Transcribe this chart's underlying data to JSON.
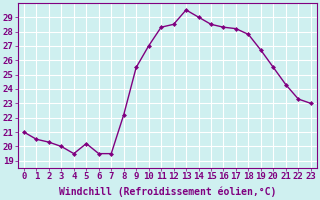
{
  "x": [
    0,
    1,
    2,
    3,
    4,
    5,
    6,
    7,
    8,
    9,
    10,
    11,
    12,
    13,
    14,
    15,
    16,
    17,
    18,
    19,
    20,
    21,
    22,
    23
  ],
  "y": [
    21.0,
    20.5,
    20.3,
    20.0,
    19.5,
    20.2,
    19.5,
    19.5,
    22.2,
    25.5,
    27.0,
    28.3,
    28.5,
    29.5,
    29.0,
    28.5,
    28.3,
    28.2,
    27.8,
    26.7,
    25.5,
    24.3,
    23.3,
    23.0
  ],
  "line_color": "#800080",
  "marker": "D",
  "marker_size": 2.0,
  "line_width": 1.0,
  "xlabel": "Windchill (Refroidissement éolien,°C)",
  "xlabel_fontsize": 7,
  "xlabel_color": "#800080",
  "xticks": [
    0,
    1,
    2,
    3,
    4,
    5,
    6,
    7,
    8,
    9,
    10,
    11,
    12,
    13,
    14,
    15,
    16,
    17,
    18,
    19,
    20,
    21,
    22,
    23
  ],
  "yticks": [
    19,
    20,
    21,
    22,
    23,
    24,
    25,
    26,
    27,
    28,
    29
  ],
  "ylim": [
    18.5,
    30.0
  ],
  "xlim": [
    -0.5,
    23.5
  ],
  "bg_color": "#cff0f0",
  "grid_color": "#ffffff",
  "tick_fontsize": 6.5,
  "tick_color": "#800080"
}
